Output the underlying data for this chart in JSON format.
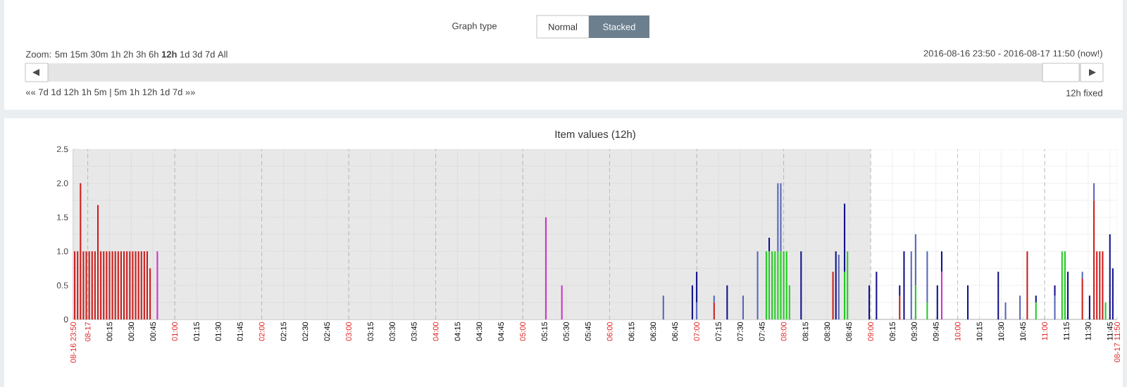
{
  "chart_data": {
    "type": "bar",
    "title": "Item values (12h)",
    "stacked": true,
    "grid": true,
    "xlim": [
      "2016-08-16T23:50",
      "2016-08-17T11:50"
    ],
    "ylim": [
      0,
      2.5
    ],
    "yticks": [
      0,
      0.5,
      {
        "value": 1,
        "label": "1.0"
      },
      1.5,
      {
        "value": 2,
        "label": "2.0"
      },
      2.5
    ],
    "xticks": [
      {
        "value": "2016-08-16T23:50",
        "label": "08-16 23:50"
      },
      {
        "value": "2016-08-17T00:00",
        "label": "08-17"
      },
      {
        "value": "2016-08-17T00:15",
        "label": "00:15"
      },
      {
        "value": "2016-08-17T00:30",
        "label": "00:30"
      },
      {
        "value": "2016-08-17T00:45",
        "label": "00:45"
      },
      {
        "value": "2016-08-17T01:00",
        "label": "01:00"
      },
      {
        "value": "2016-08-17T01:15",
        "label": "01:15"
      },
      {
        "value": "2016-08-17T01:30",
        "label": "01:30"
      },
      {
        "value": "2016-08-17T01:45",
        "label": "01:45"
      },
      {
        "value": "2016-08-17T02:00",
        "label": "02:00"
      },
      {
        "value": "2016-08-17T02:15",
        "label": "02:15"
      },
      {
        "value": "2016-08-17T02:30",
        "label": "02:30"
      },
      {
        "value": "2016-08-17T02:45",
        "label": "02:45"
      },
      {
        "value": "2016-08-17T03:00",
        "label": "03:00"
      },
      {
        "value": "2016-08-17T03:15",
        "label": "03:15"
      },
      {
        "value": "2016-08-17T03:30",
        "label": "03:30"
      },
      {
        "value": "2016-08-17T03:45",
        "label": "03:45"
      },
      {
        "value": "2016-08-17T04:00",
        "label": "04:00"
      },
      {
        "value": "2016-08-17T04:15",
        "label": "04:15"
      },
      {
        "value": "2016-08-17T04:30",
        "label": "04:30"
      },
      {
        "value": "2016-08-17T04:45",
        "label": "04:45"
      },
      {
        "value": "2016-08-17T05:00",
        "label": "05:00"
      },
      {
        "value": "2016-08-17T05:15",
        "label": "05:15"
      },
      {
        "value": "2016-08-17T05:30",
        "label": "05:30"
      },
      {
        "value": "2016-08-17T05:45",
        "label": "05:45"
      },
      {
        "value": "2016-08-17T06:00",
        "label": "06:00"
      },
      {
        "value": "2016-08-17T06:15",
        "label": "06:15"
      },
      {
        "value": "2016-08-17T06:30",
        "label": "06:30"
      },
      {
        "value": "2016-08-17T06:45",
        "label": "06:45"
      },
      {
        "value": "2016-08-17T07:00",
        "label": "07:00"
      },
      {
        "value": "2016-08-17T07:15",
        "label": "07:15"
      },
      {
        "value": "2016-08-17T07:30",
        "label": "07:30"
      },
      {
        "value": "2016-08-17T07:45",
        "label": "07:45"
      },
      {
        "value": "2016-08-17T08:00",
        "label": "08:00"
      },
      {
        "value": "2016-08-17T08:15",
        "label": "08:15"
      },
      {
        "value": "2016-08-17T08:30",
        "label": "08:30"
      },
      {
        "value": "2016-08-17T08:45",
        "label": "08:45"
      },
      {
        "value": "2016-08-17T09:00",
        "label": "09:00"
      },
      {
        "value": "2016-08-17T09:15",
        "label": "09:15"
      },
      {
        "value": "2016-08-17T09:30",
        "label": "09:30"
      },
      {
        "value": "2016-08-17T09:45",
        "label": "09:45"
      },
      {
        "value": "2016-08-17T10:00",
        "label": "10:00"
      },
      {
        "value": "2016-08-17T10:15",
        "label": "10:15"
      },
      {
        "value": "2016-08-17T10:30",
        "label": "10:30"
      },
      {
        "value": "2016-08-17T10:45",
        "label": "10:45"
      },
      {
        "value": "2016-08-17T11:00",
        "label": "11:00"
      },
      {
        "value": "2016-08-17T11:15",
        "label": "11:15"
      },
      {
        "value": "2016-08-17T11:30",
        "label": "11:30"
      },
      {
        "value": "2016-08-17T11:45",
        "label": "11:45"
      },
      {
        "value": "2016-08-17T11:50",
        "label": "08-17 11:50"
      }
    ],
    "bands": [
      {
        "axis": "x",
        "from": "2016-08-16T23:50",
        "to": "2016-08-17T09:00",
        "color": "#e8e8e8"
      }
    ],
    "x": [
      "2016-08-16T23:51",
      "2016-08-16T23:53",
      "2016-08-16T23:55",
      "2016-08-16T23:57",
      "2016-08-16T23:59",
      "2016-08-17T00:01",
      "2016-08-17T00:03",
      "2016-08-17T00:05",
      "2016-08-17T00:07",
      "2016-08-17T00:09",
      "2016-08-17T00:11",
      "2016-08-17T00:13",
      "2016-08-17T00:15",
      "2016-08-17T00:17",
      "2016-08-17T00:19",
      "2016-08-17T00:21",
      "2016-08-17T00:23",
      "2016-08-17T00:25",
      "2016-08-17T00:27",
      "2016-08-17T00:29",
      "2016-08-17T00:31",
      "2016-08-17T00:33",
      "2016-08-17T00:35",
      "2016-08-17T00:37",
      "2016-08-17T00:39",
      "2016-08-17T00:41",
      "2016-08-17T00:43",
      "2016-08-17T00:48",
      "2016-08-17T05:16",
      "2016-08-17T05:27",
      "2016-08-17T06:37",
      "2016-08-17T06:57",
      "2016-08-17T07:00",
      "2016-08-17T07:12",
      "2016-08-17T07:21",
      "2016-08-17T07:32",
      "2016-08-17T07:42",
      "2016-08-17T07:48",
      "2016-08-17T07:50",
      "2016-08-17T07:52",
      "2016-08-17T07:54",
      "2016-08-17T07:56",
      "2016-08-17T07:58",
      "2016-08-17T08:00",
      "2016-08-17T08:02",
      "2016-08-17T08:04",
      "2016-08-17T08:12",
      "2016-08-17T08:34",
      "2016-08-17T08:36",
      "2016-08-17T08:38",
      "2016-08-17T08:42",
      "2016-08-17T08:44",
      "2016-08-17T08:59",
      "2016-08-17T09:04",
      "2016-08-17T09:20",
      "2016-08-17T09:23",
      "2016-08-17T09:28",
      "2016-08-17T09:31",
      "2016-08-17T09:39",
      "2016-08-17T09:46",
      "2016-08-17T09:49",
      "2016-08-17T10:07",
      "2016-08-17T10:28",
      "2016-08-17T10:33",
      "2016-08-17T10:43",
      "2016-08-17T10:48",
      "2016-08-17T10:54",
      "2016-08-17T11:07",
      "2016-08-17T11:12",
      "2016-08-17T11:14",
      "2016-08-17T11:16",
      "2016-08-17T11:26",
      "2016-08-17T11:31",
      "2016-08-17T11:34",
      "2016-08-17T11:36",
      "2016-08-17T11:38",
      "2016-08-17T11:40",
      "2016-08-17T11:42",
      "2016-08-17T11:45",
      "2016-08-17T11:47"
    ],
    "series": [
      {
        "color": "#cc1c1c",
        "values": [
          1,
          1,
          2,
          1,
          1,
          1,
          1,
          1,
          1.68,
          1,
          1,
          1,
          1,
          1,
          1,
          1,
          1,
          1,
          1,
          1,
          1,
          1,
          1,
          1,
          1,
          1,
          0.75,
          null,
          null,
          null,
          null,
          null,
          null,
          0.25,
          null,
          null,
          null,
          null,
          null,
          null,
          null,
          null,
          null,
          null,
          null,
          null,
          null,
          0.7,
          null,
          null,
          null,
          null,
          null,
          null,
          0.35,
          null,
          null,
          null,
          null,
          null,
          null,
          null,
          null,
          null,
          null,
          1,
          null,
          null,
          null,
          null,
          null,
          0.6,
          null,
          1.75,
          1,
          1,
          1,
          null,
          null,
          null
        ]
      },
      {
        "color": "#22cc22",
        "values": [
          null,
          null,
          null,
          null,
          null,
          null,
          null,
          null,
          null,
          null,
          null,
          null,
          null,
          null,
          null,
          null,
          null,
          null,
          null,
          null,
          null,
          null,
          null,
          null,
          null,
          null,
          null,
          null,
          null,
          null,
          null,
          null,
          null,
          null,
          null,
          null,
          null,
          1,
          1,
          1,
          1,
          1,
          1,
          1,
          1,
          0.5,
          null,
          null,
          null,
          null,
          0.7,
          1,
          null,
          null,
          null,
          null,
          null,
          0.5,
          0.25,
          null,
          null,
          null,
          null,
          null,
          null,
          null,
          0.25,
          null,
          1,
          1,
          null,
          null,
          null,
          null,
          null,
          null,
          null,
          0.25,
          null,
          null
        ]
      },
      {
        "color": "#cc33cc",
        "values": [
          null,
          null,
          null,
          null,
          null,
          null,
          null,
          null,
          null,
          null,
          null,
          null,
          null,
          null,
          null,
          null,
          null,
          null,
          null,
          null,
          null,
          null,
          null,
          null,
          null,
          null,
          null,
          1,
          1.5,
          0.5,
          null,
          null,
          null,
          null,
          null,
          null,
          null,
          null,
          null,
          null,
          null,
          null,
          null,
          null,
          null,
          null,
          null,
          null,
          null,
          null,
          null,
          null,
          null,
          null,
          null,
          null,
          null,
          null,
          null,
          null,
          0.7,
          null,
          null,
          null,
          null,
          null,
          null,
          null,
          null,
          null,
          null,
          null,
          null,
          null,
          null,
          null,
          null,
          null,
          null,
          null
        ]
      },
      {
        "color": "#5566bb",
        "values": [
          null,
          null,
          null,
          null,
          null,
          null,
          null,
          null,
          null,
          null,
          null,
          null,
          null,
          null,
          null,
          null,
          null,
          null,
          null,
          null,
          null,
          null,
          null,
          null,
          null,
          null,
          null,
          null,
          null,
          null,
          0.35,
          null,
          0.25,
          0.1,
          null,
          0.35,
          1,
          null,
          null,
          null,
          null,
          1,
          1,
          null,
          null,
          null,
          null,
          null,
          null,
          0.95,
          null,
          null,
          null,
          null,
          null,
          null,
          1,
          0.75,
          0.75,
          null,
          null,
          null,
          null,
          0.25,
          0.35,
          null,
          null,
          0.35,
          null,
          null,
          null,
          0.1,
          null,
          0.25,
          null,
          null,
          null,
          null,
          null,
          null
        ]
      },
      {
        "color": "#10108a",
        "values": [
          null,
          null,
          null,
          null,
          null,
          null,
          null,
          null,
          null,
          null,
          null,
          null,
          null,
          null,
          null,
          null,
          null,
          null,
          null,
          null,
          null,
          null,
          null,
          null,
          null,
          null,
          null,
          null,
          null,
          null,
          null,
          0.5,
          0.45,
          null,
          0.5,
          null,
          null,
          null,
          0.2,
          null,
          null,
          null,
          null,
          null,
          null,
          null,
          1,
          null,
          1,
          null,
          1,
          null,
          0.5,
          0.7,
          0.15,
          1,
          null,
          null,
          null,
          0.5,
          0.3,
          0.5,
          0.7,
          null,
          null,
          null,
          0.1,
          0.15,
          null,
          null,
          0.7,
          null,
          0.35,
          null,
          null,
          null,
          null,
          null,
          1.25,
          0.75
        ]
      }
    ],
    "annotations": [
      "Graph type",
      "Normal",
      "Stacked",
      "Zoom: 5m 15m 30m 1h 2h 3h 6h **12h** 1d 3d 7d All",
      "2016-08-16 23:50 - 2016-08-17 11:50 (now!)",
      "«« 7d 1d 12h 1h 5m | 5m 1h 12h 1d 7d »»",
      "12h fixed"
    ]
  }
}
